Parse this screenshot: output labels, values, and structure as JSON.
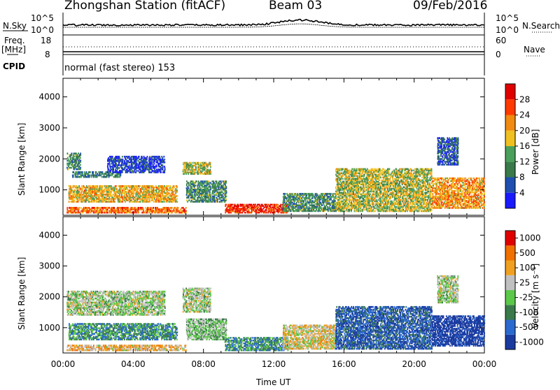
{
  "header": {
    "station": "Zhongshan Station (fitACF)",
    "beam": "Beam 03",
    "date": "09/Feb/2016"
  },
  "status_panel": {
    "nsky_label": "N.Sky",
    "nsky_ticks": [
      "10^5",
      "10^0"
    ],
    "nsearch_label": "N.Search",
    "nsearch_ticks": [
      "10^5",
      "10^0"
    ],
    "freq_label_1": "Freq.",
    "freq_label_2": "[MHz]",
    "freq_ticks": [
      "18",
      "8"
    ],
    "nave_label": "Nave",
    "nave_ticks": [
      "60",
      "0"
    ],
    "cpid_label": "CPID",
    "cpid_text": "normal (fast stereo) 153"
  },
  "chart_data": [
    {
      "type": "heatmap",
      "name": "power",
      "ylabel": "Slant Range [km]",
      "yticks": [
        "1000",
        "2000",
        "3000",
        "4000"
      ],
      "ylim": [
        180,
        4600
      ],
      "xlim": [
        0,
        24
      ],
      "colorbar_label": "Power [dB]",
      "colorbar_ticks": [
        "4",
        "8",
        "12",
        "16",
        "20",
        "24",
        "28"
      ],
      "colors": [
        "#1a1aff",
        "#1f4fb0",
        "#3a7a4a",
        "#4aa05a",
        "#f0c020",
        "#f08a10",
        "#ff3a00",
        "#e00000"
      ],
      "echo_bands": [
        {
          "t0": 0.2,
          "t1": 7.0,
          "r0": 250,
          "r1": 450,
          "level": 0.75
        },
        {
          "t0": 0.3,
          "t1": 6.5,
          "r0": 600,
          "r1": 1150,
          "level": 0.6
        },
        {
          "t0": 0.5,
          "t1": 3.3,
          "r0": 1400,
          "r1": 1600,
          "level": 0.3
        },
        {
          "t0": 0.2,
          "t1": 1.0,
          "r0": 1650,
          "r1": 2200,
          "level": 0.35
        },
        {
          "t0": 2.5,
          "t1": 5.8,
          "r0": 1550,
          "r1": 2100,
          "level": 0.15
        },
        {
          "t0": 6.8,
          "t1": 8.4,
          "r0": 1500,
          "r1": 1900,
          "level": 0.5
        },
        {
          "t0": 7.0,
          "t1": 9.3,
          "r0": 600,
          "r1": 1300,
          "level": 0.35
        },
        {
          "t0": 9.2,
          "t1": 12.8,
          "r0": 250,
          "r1": 550,
          "level": 0.85
        },
        {
          "t0": 12.5,
          "t1": 15.5,
          "r0": 300,
          "r1": 900,
          "level": 0.35
        },
        {
          "t0": 15.5,
          "t1": 21.0,
          "r0": 300,
          "r1": 1700,
          "level": 0.5
        },
        {
          "t0": 21.0,
          "t1": 24.0,
          "r0": 400,
          "r1": 1400,
          "level": 0.65
        },
        {
          "t0": 21.3,
          "t1": 22.5,
          "r0": 1800,
          "r1": 2700,
          "level": 0.2
        }
      ]
    },
    {
      "type": "heatmap",
      "name": "velocity",
      "ylabel": "Slant Range [km]",
      "yticks": [
        "1000",
        "2000",
        "3000",
        "4000"
      ],
      "ylim": [
        180,
        4600
      ],
      "xlim": [
        0,
        24
      ],
      "colorbar_label": "Velocity [m s⁻¹]",
      "colorbar_ticks": [
        "1000",
        "500",
        "100",
        "25",
        "-25",
        "-100",
        "-500",
        "-1000"
      ],
      "colors": [
        "#1a3aa0",
        "#2a6ad0",
        "#3a7a4a",
        "#5cc84a",
        "#c0c0c0",
        "#f0a020",
        "#f07000",
        "#e00000"
      ],
      "echo_bands": [
        {
          "t0": 0.2,
          "t1": 7.0,
          "r0": 250,
          "r1": 450,
          "level": 0.65
        },
        {
          "t0": 0.3,
          "t1": 6.5,
          "r0": 600,
          "r1": 1150,
          "level": 0.3
        },
        {
          "t0": 0.2,
          "t1": 5.8,
          "r0": 1400,
          "r1": 2200,
          "level": 0.5
        },
        {
          "t0": 6.8,
          "t1": 8.4,
          "r0": 1500,
          "r1": 2300,
          "level": 0.5
        },
        {
          "t0": 7.0,
          "t1": 9.3,
          "r0": 600,
          "r1": 1300,
          "level": 0.45
        },
        {
          "t0": 9.2,
          "t1": 12.8,
          "r0": 250,
          "r1": 700,
          "level": 0.3
        },
        {
          "t0": 12.5,
          "t1": 15.5,
          "r0": 300,
          "r1": 1100,
          "level": 0.6
        },
        {
          "t0": 15.5,
          "t1": 21.0,
          "r0": 300,
          "r1": 1700,
          "level": 0.15
        },
        {
          "t0": 21.0,
          "t1": 24.0,
          "r0": 400,
          "r1": 1400,
          "level": 0.0
        },
        {
          "t0": 21.3,
          "t1": 22.5,
          "r0": 1800,
          "r1": 2700,
          "level": 0.5
        }
      ]
    }
  ],
  "time_axis": {
    "ticks": [
      "00:00",
      "04:00",
      "08:00",
      "12:00",
      "16:00",
      "20:00",
      "00:00"
    ],
    "label": "Time UT"
  }
}
